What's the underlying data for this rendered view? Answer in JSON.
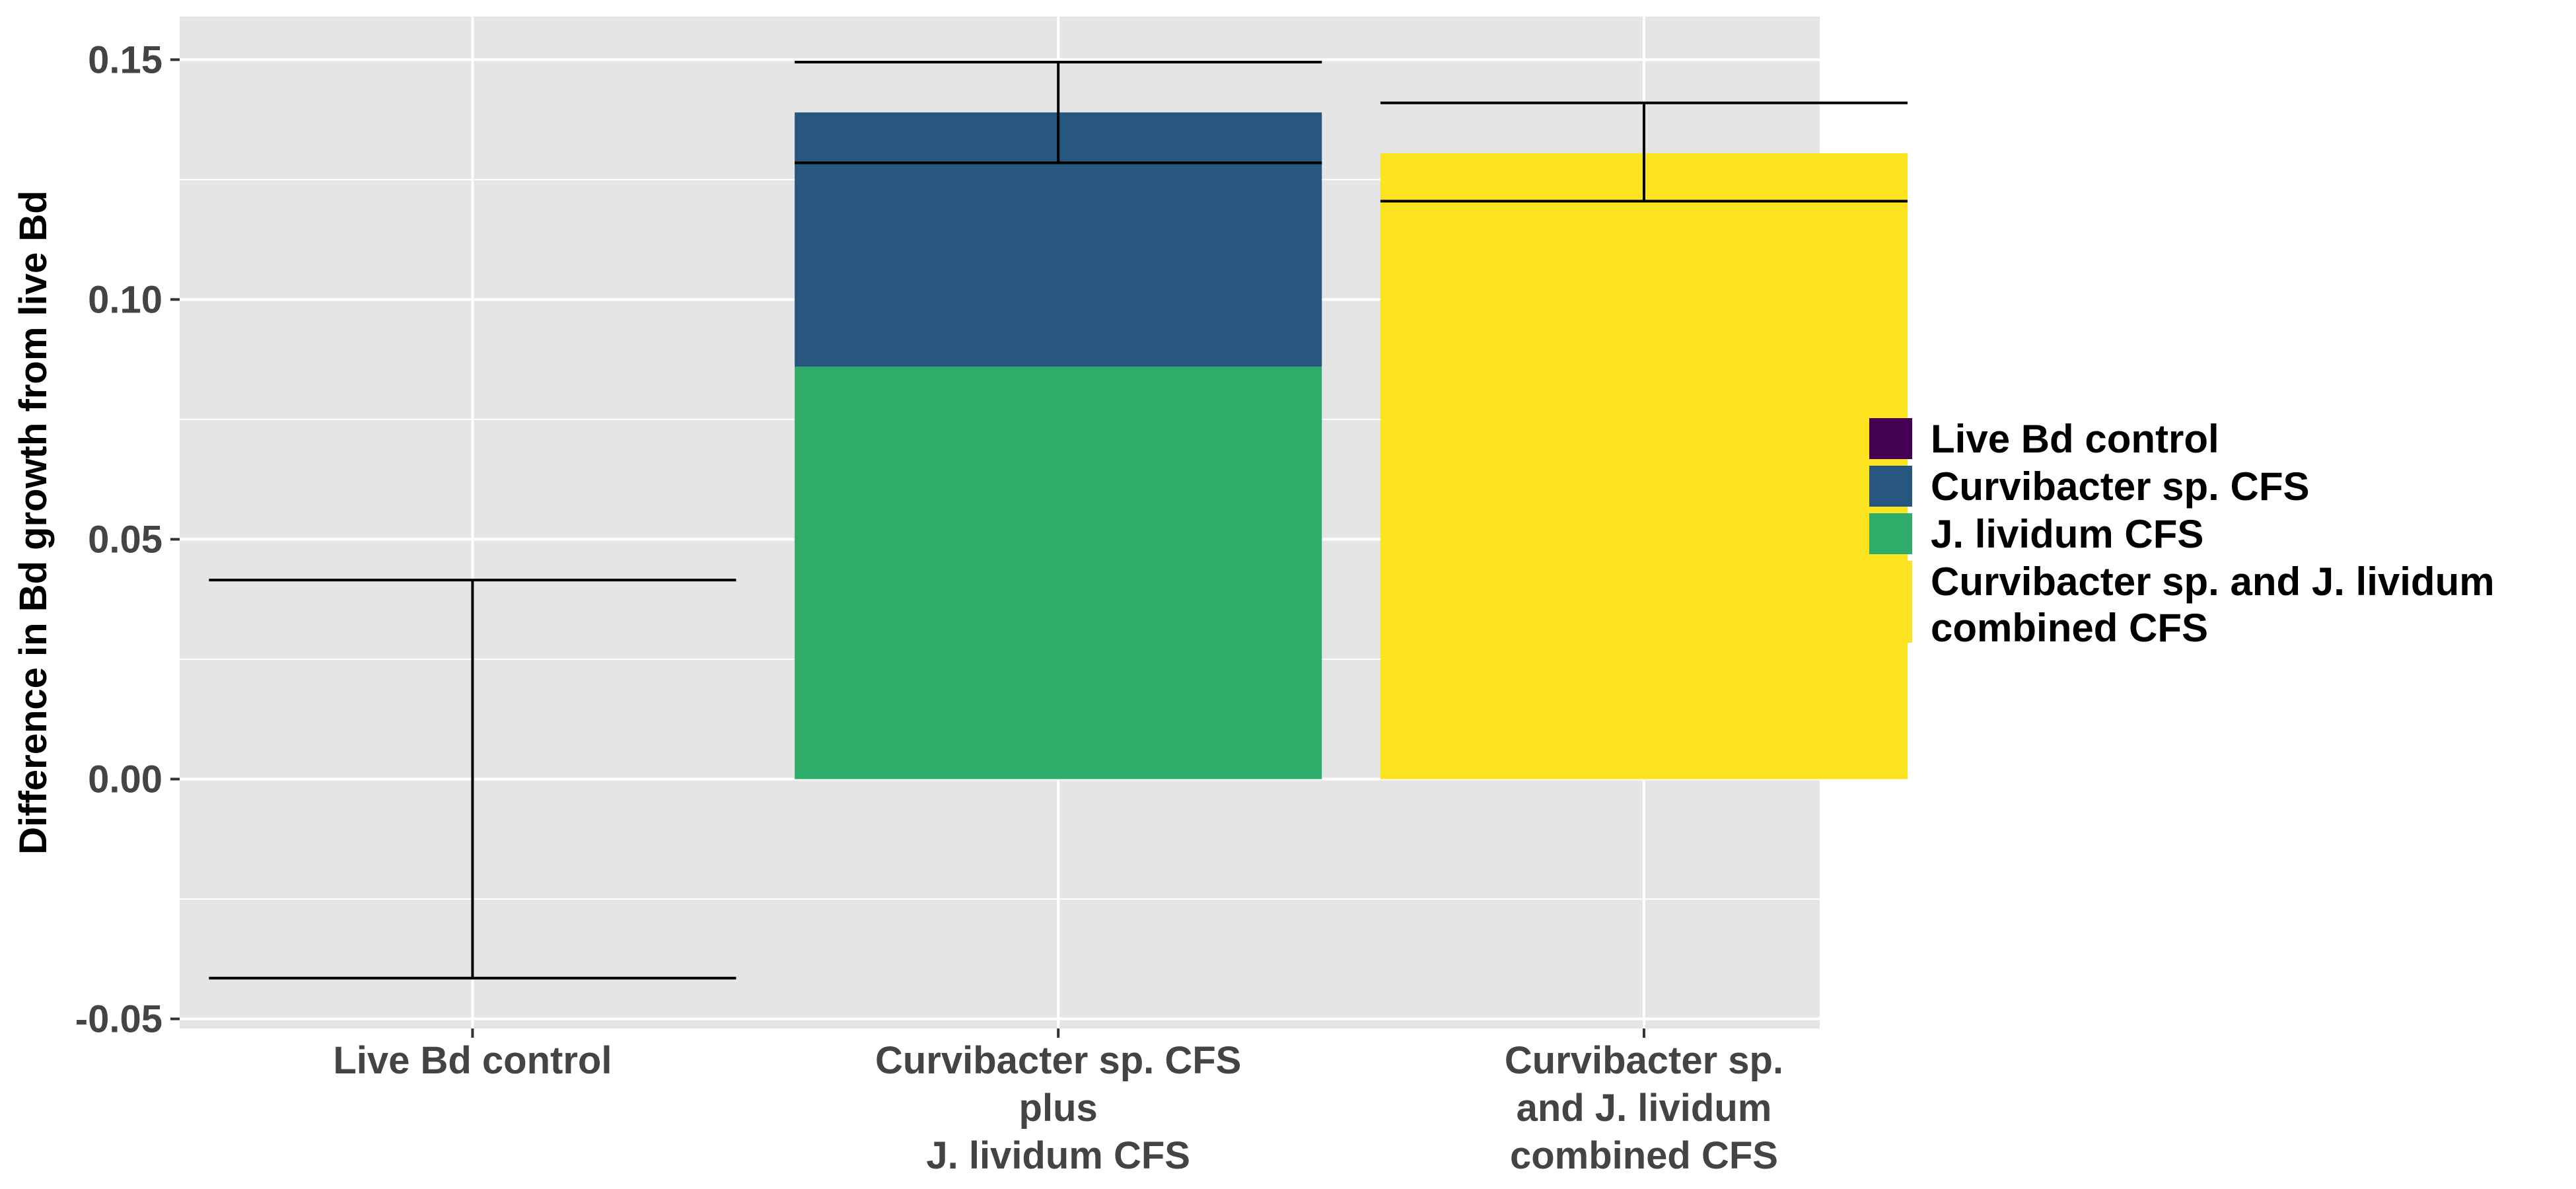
{
  "chart_data": {
    "type": "bar",
    "title": "",
    "xlabel": "",
    "ylabel": "Difference in Bd growth from live Bd",
    "ylim": [
      -0.052,
      0.159
    ],
    "yticks": [
      -0.05,
      0.0,
      0.05,
      0.1,
      0.15
    ],
    "ytick_labels": [
      "-0.05",
      "0.00",
      "0.05",
      "0.10",
      "0.15"
    ],
    "categories": [
      [
        "Live Bd control"
      ],
      [
        "Curvibacter sp. CFS",
        "plus",
        "J. lividum CFS"
      ],
      [
        "Curvibacter sp.",
        "and J. lividum",
        "combined CFS"
      ]
    ],
    "bars": [
      {
        "category_index": 0,
        "segments": [],
        "error": {
          "center": 0.0,
          "lower": -0.0415,
          "upper": 0.0415
        }
      },
      {
        "category_index": 1,
        "segments": [
          {
            "series": "J. lividum CFS",
            "from": 0.0,
            "to": 0.086
          },
          {
            "series": "Curvibacter sp. CFS",
            "from": 0.086,
            "to": 0.139
          }
        ],
        "error": {
          "center": 0.139,
          "lower": 0.1285,
          "upper": 0.1495
        }
      },
      {
        "category_index": 2,
        "segments": [
          {
            "series": "Curvibacter sp. and J. lividum combined CFS",
            "from": 0.0,
            "to": 0.1305
          }
        ],
        "error": {
          "center": 0.1305,
          "lower": 0.1205,
          "upper": 0.141
        }
      }
    ],
    "legend": {
      "position": "right",
      "entries": [
        {
          "lines": [
            "Live Bd control"
          ],
          "color": "#440154"
        },
        {
          "lines": [
            "Curvibacter sp. CFS"
          ],
          "color": "#27567F"
        },
        {
          "lines": [
            "J. lividum CFS"
          ],
          "color": "#2FAC6A"
        },
        {
          "lines": [
            "Curvibacter sp. and J. lividum",
            "combined CFS"
          ],
          "color": "#FBE31F"
        }
      ]
    },
    "grid": true,
    "panel_background": "#E5E5E5",
    "grid_color": "#FFFFFF",
    "errorbar_color": "#000000"
  }
}
